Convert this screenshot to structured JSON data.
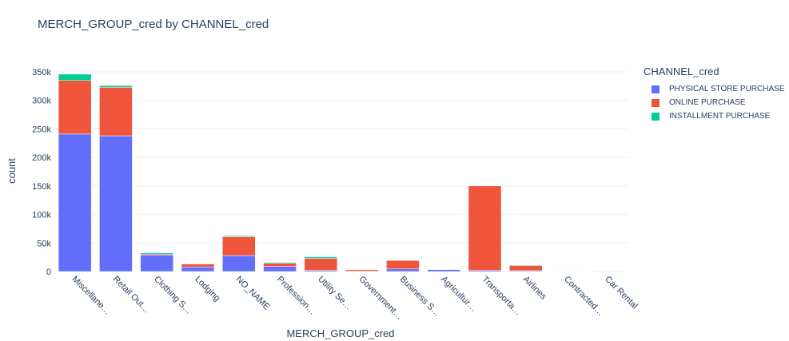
{
  "chart_data": {
    "type": "bar",
    "barmode": "stack",
    "title": "MERCH_GROUP_cred by CHANNEL_cred",
    "xlabel": "MERCH_GROUP_cred",
    "ylabel": "count",
    "ylim": [
      0,
      350000
    ],
    "yticks": [
      0,
      50000,
      100000,
      150000,
      200000,
      250000,
      300000,
      350000
    ],
    "ytick_labels": [
      "0",
      "50k",
      "100k",
      "150k",
      "200k",
      "250k",
      "300k",
      "350k"
    ],
    "categories": [
      "Miscellane…",
      "Retail Out…",
      "Clothing S…",
      "Lodging",
      "NO_NAME",
      "Profession…",
      "Utility Se…",
      "Government…",
      "Business S…",
      "Agricultur…",
      "Transporta…",
      "Airlines",
      "Contracted…",
      "Car Rental"
    ],
    "legend_title": "CHANNEL_cred",
    "legend_position": "top-right",
    "grid": true,
    "series": [
      {
        "name": "PHYSICAL STORE PURCHASE",
        "color": "#636efa",
        "values": [
          241000,
          238000,
          29000,
          8000,
          28000,
          9000,
          2000,
          500,
          4500,
          3500,
          2000,
          1500,
          500,
          1000
        ]
      },
      {
        "name": "ONLINE PURCHASE",
        "color": "#ef553b",
        "values": [
          94000,
          85000,
          1500,
          5500,
          33000,
          5500,
          21000,
          2500,
          15000,
          500,
          148000,
          9000,
          500,
          500
        ]
      },
      {
        "name": "INSTALLMENT PURCHASE",
        "color": "#00cc96",
        "values": [
          11000,
          3000,
          2000,
          500,
          1500,
          1500,
          2500,
          0,
          500,
          0,
          0,
          1000,
          500,
          0
        ]
      }
    ]
  }
}
